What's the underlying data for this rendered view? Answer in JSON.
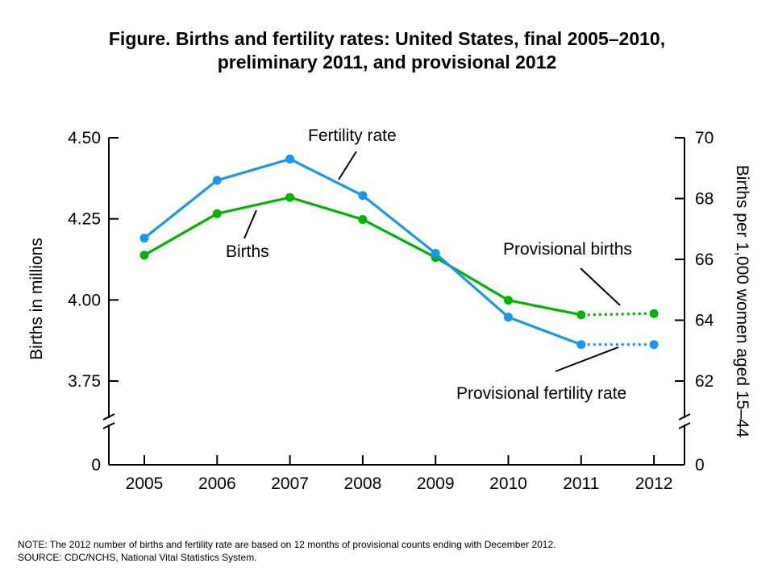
{
  "title_line1": "Figure. Births and fertility rates: United States, final 2005–2010,",
  "title_line2": "preliminary 2011, and provisional 2012",
  "notes": {
    "note": "NOTE: The 2012 number of births and fertility rate are based on 12 months of provisional counts ending with December 2012.",
    "source": "SOURCE: CDC/NCHS, National Vital Statistics System."
  },
  "chart_data": {
    "type": "line",
    "categories": [
      "2005",
      "2006",
      "2007",
      "2008",
      "2009",
      "2010",
      "2011",
      "2012"
    ],
    "ylabel_left": "Births in millions",
    "ylabel_right": "Births per 1,000 women aged 15–44",
    "left_axis": {
      "range": [
        3.75,
        4.5
      ],
      "ticks": [
        "4.50",
        "4.25",
        "4.00",
        "3.75"
      ],
      "tick_values": [
        4.5,
        4.25,
        4.0,
        3.75
      ],
      "zero_label": "0",
      "axis_break": true
    },
    "right_axis": {
      "range": [
        62,
        70
      ],
      "ticks": [
        "70",
        "68",
        "66",
        "64",
        "62"
      ],
      "tick_values": [
        70,
        68,
        66,
        64,
        62
      ],
      "zero_label": "0",
      "axis_break": true
    },
    "series": [
      {
        "name": "Births",
        "axis": "left",
        "color": "#00b400",
        "values": [
          4.138,
          4.266,
          4.316,
          4.248,
          4.131,
          3.999,
          3.954,
          3.958
        ]
      },
      {
        "name": "Fertility rate",
        "axis": "right",
        "color": "#1a96f0",
        "values": [
          66.7,
          68.6,
          69.3,
          68.1,
          66.2,
          64.1,
          63.2,
          63.2
        ]
      }
    ],
    "provisional_from_index": 6,
    "annotations": [
      "Fertility rate",
      "Births",
      "Provisional births",
      "Provisional fertility rate"
    ],
    "grid": false
  }
}
